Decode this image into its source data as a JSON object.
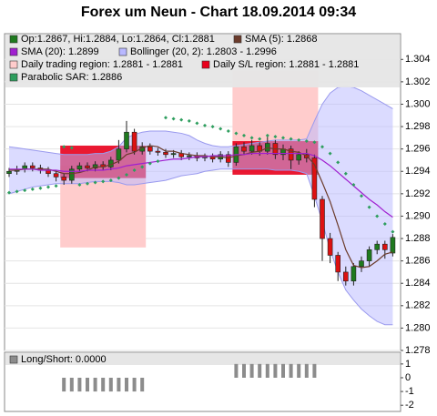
{
  "chart_data": [
    {
      "type": "candlestick",
      "title": "Forex um Neun - Chart 18.09.2014 09:34",
      "ylim": [
        1.278,
        1.3063
      ],
      "yticks": [
        {
          "value": 1.278,
          "label": "1.278"
        },
        {
          "value": 1.28,
          "label": "1.280"
        },
        {
          "value": 1.282,
          "label": "1.282"
        },
        {
          "value": 1.284,
          "label": "1.284"
        },
        {
          "value": 1.286,
          "label": "1.286"
        },
        {
          "value": 1.288,
          "label": "1.288"
        },
        {
          "value": 1.29,
          "label": "1.290"
        },
        {
          "value": 1.292,
          "label": "1.292"
        },
        {
          "value": 1.294,
          "label": "1.294"
        },
        {
          "value": 1.296,
          "label": "1.296"
        },
        {
          "value": 1.298,
          "label": "1.298"
        },
        {
          "value": 1.3,
          "label": "1.300"
        },
        {
          "value": 1.302,
          "label": "1.302"
        },
        {
          "value": 1.304,
          "label": "1.304"
        }
      ],
      "grid": true,
      "ohlc": {
        "name": "Op:1.2867, Hi:1.2884, Lo:1.2864, Cl:1.2881",
        "color": "#1f7a1f",
        "down_color": "#dd1111",
        "open": [
          1.2938,
          1.294,
          1.2942,
          1.2945,
          1.2943,
          1.2941,
          1.2938,
          1.2935,
          1.2932,
          1.2942,
          1.2945,
          1.2943,
          1.2946,
          1.2944,
          1.295,
          1.296,
          1.2975,
          1.2958,
          1.2962,
          1.2958,
          1.2957,
          1.2955,
          1.2956,
          1.2953,
          1.2954,
          1.2952,
          1.2953,
          1.2951,
          1.2955,
          1.2948,
          1.2962,
          1.2958,
          1.2963,
          1.2958,
          1.2965,
          1.2955,
          1.296,
          1.295,
          1.2955,
          1.2952,
          1.2915,
          1.288,
          1.2865,
          1.285,
          1.2842,
          1.2855,
          1.286,
          1.287,
          1.2875,
          1.2867
        ],
        "high": [
          1.2943,
          1.2945,
          1.2948,
          1.2948,
          1.2946,
          1.2944,
          1.2941,
          1.2938,
          1.2945,
          1.2948,
          1.2948,
          1.2949,
          1.2949,
          1.2953,
          1.2968,
          1.2985,
          1.2978,
          1.2966,
          1.2965,
          1.2961,
          1.296,
          1.2959,
          1.2959,
          1.2957,
          1.2957,
          1.2956,
          1.2956,
          1.2958,
          1.2958,
          1.2965,
          1.2966,
          1.2968,
          1.2966,
          1.2971,
          1.2968,
          1.2964,
          1.2963,
          1.2958,
          1.296,
          1.2955,
          1.2918,
          1.2885,
          1.2868,
          1.2855,
          1.2858,
          1.2864,
          1.2873,
          1.2878,
          1.2878,
          1.2884
        ],
        "low": [
          1.2935,
          1.2937,
          1.2939,
          1.294,
          1.2938,
          1.2935,
          1.2931,
          1.2928,
          1.2929,
          1.2939,
          1.294,
          1.294,
          1.2941,
          1.2941,
          1.2947,
          1.2957,
          1.2955,
          1.2955,
          1.2955,
          1.2954,
          1.2952,
          1.2952,
          1.295,
          1.295,
          1.2949,
          1.2949,
          1.2948,
          1.2948,
          1.2944,
          1.2945,
          1.2955,
          1.2955,
          1.2954,
          1.2955,
          1.2951,
          1.295,
          1.2942,
          1.2946,
          1.2948,
          1.2908,
          1.286,
          1.2858,
          1.2842,
          1.2838,
          1.2838,
          1.285,
          1.2855,
          1.2866,
          1.2862,
          1.2864
        ],
        "close": [
          1.294,
          1.2942,
          1.2945,
          1.2943,
          1.2941,
          1.2938,
          1.2935,
          1.2932,
          1.2942,
          1.2945,
          1.2943,
          1.2946,
          1.2944,
          1.295,
          1.296,
          1.2975,
          1.2958,
          1.2962,
          1.2958,
          1.2957,
          1.2955,
          1.2956,
          1.2953,
          1.2954,
          1.2952,
          1.2953,
          1.2951,
          1.2955,
          1.2948,
          1.2962,
          1.2958,
          1.2963,
          1.2958,
          1.2965,
          1.2955,
          1.296,
          1.295,
          1.2955,
          1.2952,
          1.2915,
          1.288,
          1.2865,
          1.285,
          1.2842,
          1.2855,
          1.286,
          1.287,
          1.2875,
          1.287,
          1.2881
        ]
      },
      "series": [
        {
          "name": "SMA (5): 1.2868",
          "color": "#6b3b2b",
          "values": [
            1.2941,
            1.2941,
            1.2942,
            1.2942,
            1.2942,
            1.2942,
            1.294,
            1.2938,
            1.2938,
            1.2939,
            1.2941,
            1.2944,
            1.2944,
            1.2946,
            1.2949,
            1.2955,
            1.2957,
            1.2961,
            1.2963,
            1.2962,
            1.2958,
            1.2958,
            1.2956,
            1.2955,
            1.2954,
            1.2954,
            1.2953,
            1.2953,
            1.2952,
            1.2954,
            1.2955,
            1.2957,
            1.2958,
            1.2961,
            1.296,
            1.296,
            1.2958,
            1.2957,
            1.2954,
            1.2946,
            1.293,
            1.2913,
            1.2892,
            1.287,
            1.2856,
            1.2854,
            1.2855,
            1.286,
            1.2866,
            1.2868
          ]
        },
        {
          "name": "SMA (20): 1.2899",
          "color": "#a020d0",
          "values": [
            1.2942,
            1.2942,
            1.2942,
            1.2942,
            1.2941,
            1.2941,
            1.2941,
            1.294,
            1.294,
            1.294,
            1.2941,
            1.2941,
            1.2941,
            1.2942,
            1.2943,
            1.2945,
            1.2946,
            1.2947,
            1.2948,
            1.2949,
            1.295,
            1.2951,
            1.2951,
            1.2952,
            1.2953,
            1.2953,
            1.2954,
            1.2954,
            1.2954,
            1.2955,
            1.2955,
            1.2956,
            1.2956,
            1.2956,
            1.2956,
            1.2956,
            1.2956,
            1.2956,
            1.2956,
            1.2954,
            1.295,
            1.2945,
            1.2939,
            1.2933,
            1.2927,
            1.2921,
            1.2915,
            1.291,
            1.2904,
            1.2899
          ]
        }
      ],
      "bollinger": {
        "name": "Bollinger (20, 2): 1.2803 - 1.2996",
        "color": "#b8b8ff",
        "upper": [
          1.2962,
          1.2961,
          1.296,
          1.2959,
          1.2958,
          1.2957,
          1.2956,
          1.2955,
          1.2955,
          1.2955,
          1.2955,
          1.2956,
          1.2956,
          1.2958,
          1.2962,
          1.297,
          1.2973,
          1.2975,
          1.2976,
          1.2976,
          1.2976,
          1.2975,
          1.2974,
          1.2972,
          1.2968,
          1.2965,
          1.2963,
          1.2962,
          1.2962,
          1.2963,
          1.2964,
          1.2965,
          1.2966,
          1.2967,
          1.2968,
          1.2968,
          1.2968,
          1.2968,
          1.2969,
          1.2985,
          1.3,
          1.301,
          1.3015,
          1.3016,
          1.3015,
          1.3012,
          1.3008,
          1.3004,
          1.3,
          1.2996
        ],
        "lower": [
          1.292,
          1.2922,
          1.2924,
          1.2926,
          1.2927,
          1.2928,
          1.2929,
          1.2929,
          1.2929,
          1.2929,
          1.293,
          1.2931,
          1.2931,
          1.2931,
          1.293,
          1.2928,
          1.2928,
          1.2929,
          1.293,
          1.2931,
          1.2932,
          1.2934,
          1.2936,
          1.2937,
          1.2938,
          1.294,
          1.2941,
          1.2942,
          1.2942,
          1.2942,
          1.2942,
          1.2942,
          1.2942,
          1.2942,
          1.2941,
          1.2941,
          1.2941,
          1.294,
          1.2938,
          1.2918,
          1.2895,
          1.287,
          1.285,
          1.2834,
          1.2825,
          1.2817,
          1.2811,
          1.2806,
          1.2803,
          1.2803
        ]
      },
      "regions": [
        {
          "name": "Daily trading region: 1.2881 - 1.2881",
          "color": "#ffcccc",
          "boxes": [
            {
              "start": 7,
              "end": 17,
              "low": 1.2872,
              "high": 1.2945
            },
            {
              "start": 29,
              "end": 39,
              "low": 1.294,
              "high": 1.303
            }
          ]
        },
        {
          "name": "Daily S/L region: 1.2881 - 1.2881",
          "color": "#e8001c",
          "boxes": [
            {
              "start": 7,
              "end": 17,
              "low": 1.2934,
              "high": 1.2963
            },
            {
              "start": 29,
              "end": 39,
              "low": 1.2937,
              "high": 1.2967
            }
          ]
        }
      ],
      "sar": {
        "name": "Parabolic SAR: 1.2886",
        "color": "#2e9e5e",
        "values": [
          1.2921,
          1.2922,
          1.2923,
          1.2924,
          1.2925,
          1.2926,
          1.2927,
          1.2962,
          1.2961,
          1.2928,
          1.2929,
          1.293,
          1.2931,
          1.2932,
          1.2934,
          1.2937,
          1.2941,
          1.2944,
          1.2947,
          1.2949,
          1.2988,
          1.2987,
          1.2986,
          1.2985,
          1.2983,
          1.2981,
          1.298,
          1.2978,
          1.2976,
          1.2974,
          1.2972,
          1.297,
          1.2969,
          1.2972,
          1.2971,
          1.297,
          1.2969,
          1.2968,
          1.2967,
          1.2966,
          1.2962,
          1.2956,
          1.2948,
          1.2938,
          1.2928,
          1.2918,
          1.2908,
          1.29,
          1.2893,
          1.2886
        ]
      }
    },
    {
      "type": "bar",
      "title": "Long/Short: 0.0000",
      "color": "#8c8c8c",
      "ylim": [
        -2.45,
        1.85
      ],
      "yticks": [
        1,
        0,
        -1,
        -2
      ],
      "values": [
        0,
        0,
        0,
        0,
        0,
        0,
        0,
        -1,
        -1,
        -1,
        -1,
        -1,
        -1,
        -1,
        -1,
        -1,
        -1,
        -1,
        0,
        0,
        0,
        0,
        0,
        0,
        0,
        0,
        0,
        0,
        0,
        1,
        1,
        1,
        1,
        1,
        1,
        1,
        1,
        1,
        1,
        1,
        0,
        0,
        0,
        0,
        0,
        0,
        0,
        0,
        0,
        0
      ]
    }
  ]
}
